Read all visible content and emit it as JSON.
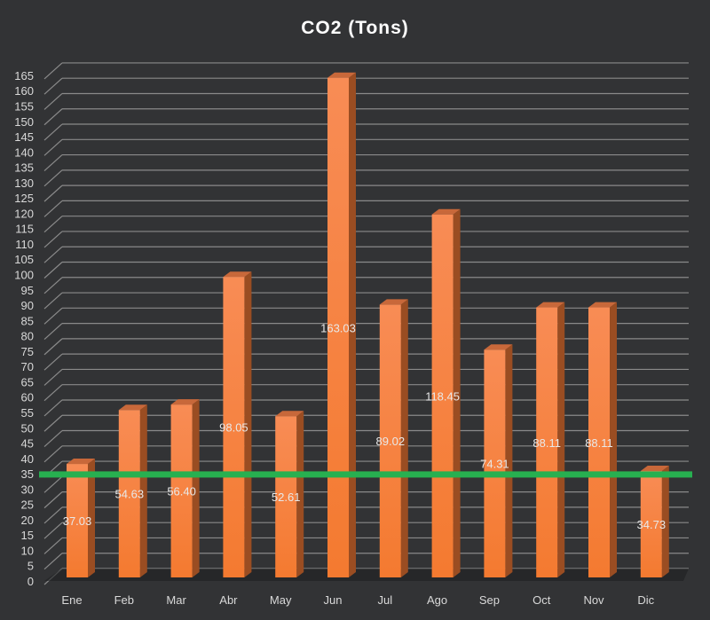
{
  "chart_data": {
    "type": "bar",
    "title": "CO2 (Tons)",
    "xlabel": "",
    "ylabel": "",
    "categories": [
      "Ene",
      "Feb",
      "Mar",
      "Abr",
      "May",
      "Jun",
      "Jul",
      "Ago",
      "Sep",
      "Oct",
      "Nov",
      "Dic"
    ],
    "values": [
      37.03,
      54.63,
      56.4,
      98.05,
      52.61,
      163.03,
      89.02,
      118.45,
      74.31,
      88.11,
      88.11,
      34.73
    ],
    "data_labels": [
      "37.03",
      "54.63",
      "56.40",
      "98.05",
      "52.61",
      "163.03",
      "89.02",
      "118.45",
      "74.31",
      "88.11",
      "88.11",
      "34.73"
    ],
    "ylim": [
      0,
      165
    ],
    "yticks": [
      "0",
      "5",
      "10",
      "15",
      "20",
      "25",
      "30",
      "35",
      "40",
      "45",
      "50",
      "55",
      "60",
      "65",
      "70",
      "75",
      "80",
      "85",
      "90",
      "95",
      "100",
      "105",
      "110",
      "115",
      "120",
      "125",
      "130",
      "135",
      "140",
      "145",
      "150",
      "155",
      "160",
      "165"
    ],
    "reference_line": 33.6,
    "grid": true,
    "legend": "none",
    "colors": {
      "bar": "#f47a30",
      "bar_side": "#9a4d22",
      "bar_top": "#c8683a",
      "reference": "#27b050",
      "grid": "#8a8a8a",
      "background": "#323335"
    }
  }
}
